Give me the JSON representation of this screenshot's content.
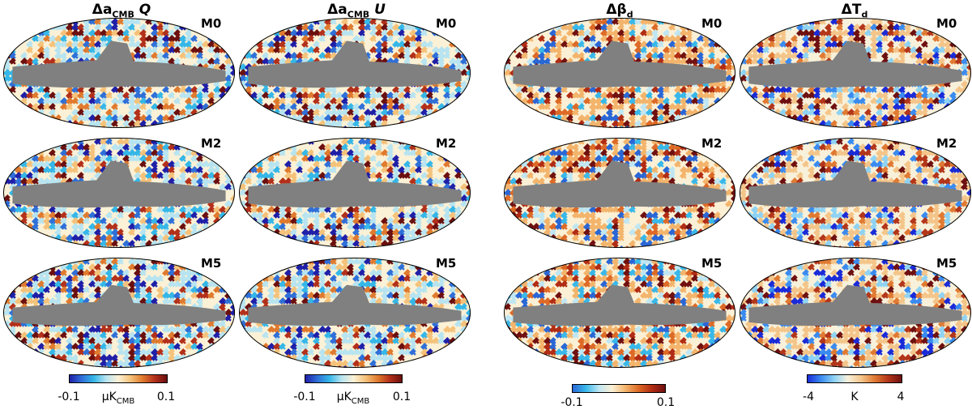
{
  "columns": [
    {
      "id": "acmb-q",
      "title_prefix": "Δa",
      "title_sub": "CMB",
      "title_suffix": " Q",
      "cmap": "cmb"
    },
    {
      "id": "acmb-u",
      "title_prefix": "Δa",
      "title_sub": "CMB",
      "title_suffix": " U",
      "cmap": "cmb"
    },
    {
      "id": "beta-d",
      "title_prefix": "Δβ",
      "title_sub": "d",
      "title_suffix": "",
      "cmap": "beta"
    },
    {
      "id": "t-d",
      "title_prefix": "ΔT",
      "title_sub": "d",
      "title_suffix": "",
      "cmap": "temp"
    }
  ],
  "rows": [
    "M0",
    "M2",
    "M5"
  ],
  "colorbars": [
    {
      "id": "cmb-q",
      "min_label": "-0.1",
      "max_label": "0.1",
      "unit_prefix": "μK",
      "unit_sub": "CMB",
      "cmap": "cmb"
    },
    {
      "id": "cmb-u",
      "min_label": "-0.1",
      "max_label": "0.1",
      "unit_prefix": "μK",
      "unit_sub": "CMB",
      "cmap": "cmb"
    },
    {
      "id": "beta",
      "min_label": "-0.1",
      "max_label": "0.1",
      "unit_prefix": "",
      "unit_sub": "",
      "cmap": "beta"
    },
    {
      "id": "temp",
      "min_label": "-4",
      "max_label": "4",
      "unit_prefix": "K",
      "unit_sub": "",
      "cmap": "temp"
    }
  ],
  "colors": {
    "mask": "#808080",
    "cmb_map": [
      "#1f1fa8",
      "#2f6fd8",
      "#35b7e8",
      "#b7e4f0",
      "#fbf1d6",
      "#f5c27a",
      "#e07a2e",
      "#b3301a",
      "#6b0f0f"
    ],
    "beta_map": [
      "#2a67d6",
      "#38b8ea",
      "#bfe6f2",
      "#fbf0d5",
      "#f3b46c",
      "#dd6a26",
      "#b12c14",
      "#701010"
    ],
    "temp_map": [
      "#1a2bd8",
      "#3a8bf0",
      "#8fd3f4",
      "#f7f1dc",
      "#f4c58a",
      "#e07a33",
      "#b3361a",
      "#6e1010"
    ]
  }
}
